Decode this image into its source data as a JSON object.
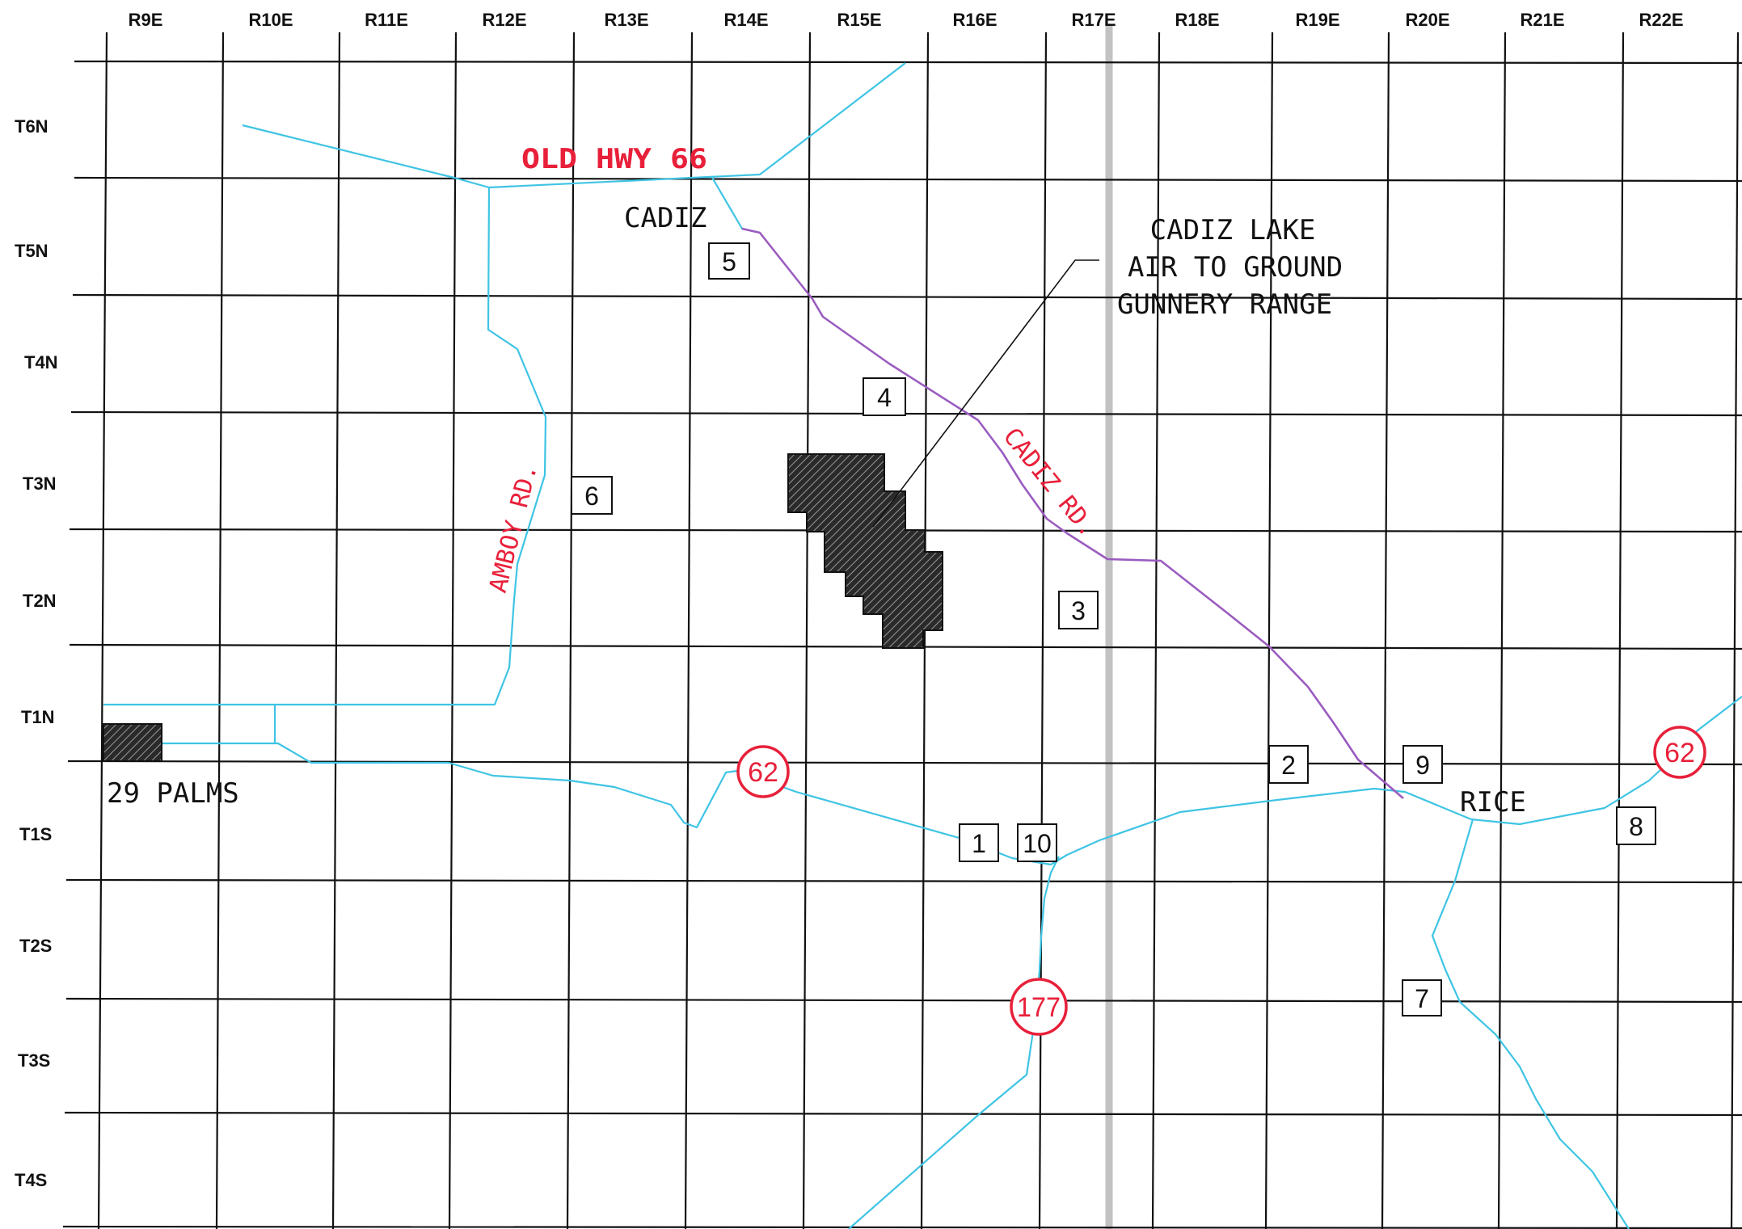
{
  "ranges": [
    "R9E",
    "R10E",
    "R11E",
    "R12E",
    "R13E",
    "R14E",
    "R15E",
    "R16E",
    "R17E",
    "R18E",
    "R19E",
    "R20E",
    "R21E",
    "R22E"
  ],
  "townships": [
    "T6N",
    "T5N",
    "T4N",
    "T3N",
    "T2N",
    "T1N",
    "T1S",
    "T2S",
    "T3S",
    "T4S"
  ],
  "places": {
    "cadiz": "CADIZ",
    "twenty_nine_palms": "29 PALMS",
    "rice": "RICE"
  },
  "roads": {
    "old_hwy_66": "OLD HWY 66",
    "amboy_rd": "AMBOY RD.",
    "cadiz_rd": "CADIZ RD."
  },
  "callout": {
    "line1": "CADIZ LAKE",
    "line2": "AIR TO GROUND",
    "line3": "GUNNERY RANGE"
  },
  "sites": [
    "1",
    "2",
    "3",
    "4",
    "5",
    "6",
    "7",
    "8",
    "9",
    "10"
  ],
  "shields": {
    "hwy62_west": "62",
    "hwy62_east": "62",
    "hwy177": "177"
  },
  "colors": {
    "grid": "#111111",
    "road": "#3fc4e4",
    "rail": "#9a5cc0",
    "label_red": "#e8203a"
  }
}
